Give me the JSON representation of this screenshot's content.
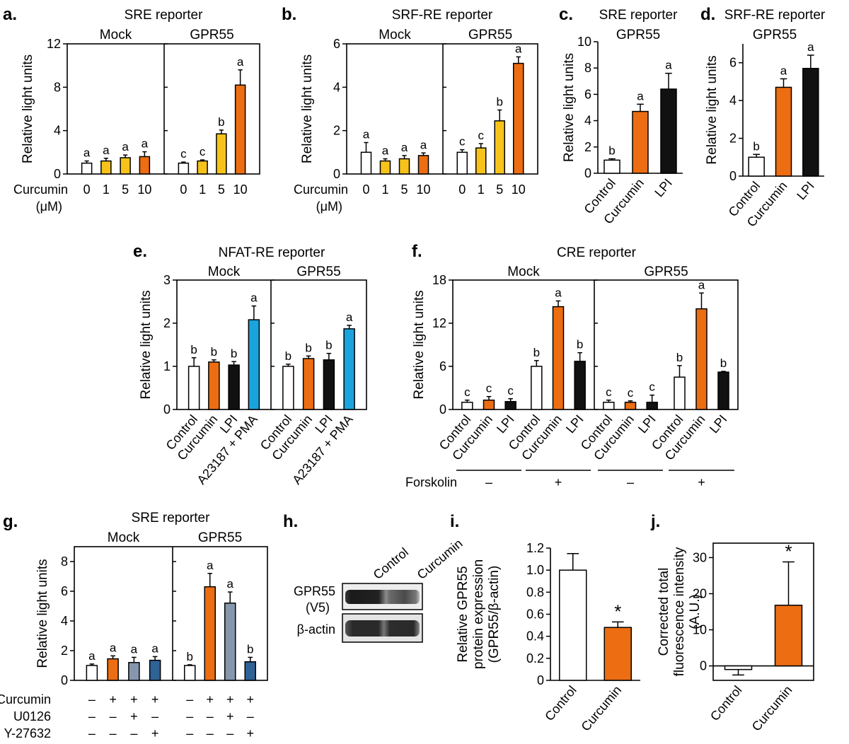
{
  "colors": {
    "white": "#ffffff",
    "yellow": "#f7c31b",
    "orange": "#ec6d12",
    "black": "#111111",
    "cyan": "#1ba3dd",
    "slate": "#8696ad",
    "blue": "#2f6295"
  },
  "chart_data": [
    {
      "id": "a",
      "panel_label": "a.",
      "type": "bar",
      "title": "SRE reporter",
      "ylabel": "Relative light units",
      "ylim": [
        0,
        12
      ],
      "yticks": [
        0,
        4,
        8,
        12
      ],
      "groups": [
        "Mock",
        "GPR55"
      ],
      "categories": [
        "0",
        "1",
        "5",
        "10"
      ],
      "category_axis_label": "Curcumin",
      "category_axis_unit": "(μM)",
      "series": [
        {
          "group": "Mock",
          "values": [
            1.0,
            1.2,
            1.5,
            1.6
          ],
          "errors": [
            0.2,
            0.25,
            0.25,
            0.45
          ],
          "letters": [
            "a",
            "a",
            "a",
            "a"
          ],
          "colors": [
            "white",
            "yellow",
            "yellow",
            "orange"
          ]
        },
        {
          "group": "GPR55",
          "values": [
            1.0,
            1.2,
            3.7,
            8.2
          ],
          "errors": [
            0.1,
            0.1,
            0.35,
            1.4
          ],
          "letters": [
            "c",
            "c",
            "b",
            "a"
          ],
          "colors": [
            "white",
            "yellow",
            "yellow",
            "orange"
          ]
        }
      ]
    },
    {
      "id": "b",
      "panel_label": "b.",
      "type": "bar",
      "title": "SRF-RE reporter",
      "ylabel": "Relative light units",
      "ylim": [
        0,
        6
      ],
      "yticks": [
        0,
        2,
        4,
        6
      ],
      "groups": [
        "Mock",
        "GPR55"
      ],
      "categories": [
        "0",
        "1",
        "5",
        "10"
      ],
      "category_axis_label": "Curcumin",
      "category_axis_unit": "(μM)",
      "series": [
        {
          "group": "Mock",
          "values": [
            1.0,
            0.6,
            0.7,
            0.85
          ],
          "errors": [
            0.45,
            0.1,
            0.15,
            0.12
          ],
          "letters": [
            "a",
            "a",
            "a",
            "a"
          ],
          "colors": [
            "white",
            "yellow",
            "yellow",
            "orange"
          ]
        },
        {
          "group": "GPR55",
          "values": [
            1.0,
            1.2,
            2.45,
            5.1
          ],
          "errors": [
            0.12,
            0.2,
            0.5,
            0.3
          ],
          "letters": [
            "c",
            "c",
            "b",
            "a"
          ],
          "colors": [
            "white",
            "yellow",
            "yellow",
            "orange"
          ]
        }
      ]
    },
    {
      "id": "c",
      "panel_label": "c.",
      "type": "bar",
      "title": "SRE reporter",
      "subtitle": "GPR55",
      "ylabel": "Relative light units",
      "ylim": [
        0,
        10
      ],
      "yticks": [
        0,
        2,
        4,
        6,
        8,
        10
      ],
      "categories": [
        "Control",
        "Curcumin",
        "LPI"
      ],
      "values": [
        1.0,
        4.7,
        6.4
      ],
      "errors": [
        0.1,
        0.55,
        1.2
      ],
      "letters": [
        "b",
        "a",
        "a"
      ],
      "colors": [
        "white",
        "orange",
        "black"
      ]
    },
    {
      "id": "d",
      "panel_label": "d.",
      "type": "bar",
      "title": "SRF-RE reporter",
      "subtitle": "GPR55",
      "ylabel": "Relative light units",
      "ylim": [
        0,
        7
      ],
      "yticks": [
        0,
        2,
        4,
        6
      ],
      "categories": [
        "Control",
        "Curcumin",
        "LPI"
      ],
      "values": [
        1.0,
        4.7,
        5.7
      ],
      "errors": [
        0.15,
        0.45,
        0.7
      ],
      "letters": [
        "b",
        "a",
        "a"
      ],
      "colors": [
        "white",
        "orange",
        "black"
      ]
    },
    {
      "id": "e",
      "panel_label": "e.",
      "type": "bar",
      "title": "NFAT-RE reporter",
      "ylabel": "Relative light units",
      "ylim": [
        0,
        3
      ],
      "yticks": [
        0,
        1,
        2,
        3
      ],
      "groups": [
        "Mock",
        "GPR55"
      ],
      "categories": [
        "Control",
        "Curcumin",
        "LPI",
        "A23187 + PMA"
      ],
      "series": [
        {
          "group": "Mock",
          "values": [
            1.0,
            1.1,
            1.03,
            2.08
          ],
          "errors": [
            0.2,
            0.05,
            0.08,
            0.32
          ],
          "letters": [
            "b",
            "b",
            "b",
            "a"
          ],
          "colors": [
            "white",
            "orange",
            "black",
            "cyan"
          ]
        },
        {
          "group": "GPR55",
          "values": [
            1.0,
            1.18,
            1.15,
            1.87
          ],
          "errors": [
            0.05,
            0.06,
            0.15,
            0.08
          ],
          "letters": [
            "b",
            "b",
            "b",
            "a"
          ],
          "colors": [
            "white",
            "orange",
            "black",
            "cyan"
          ]
        }
      ]
    },
    {
      "id": "f",
      "panel_label": "f.",
      "type": "bar",
      "title": "CRE reporter",
      "ylabel": "Relative light units",
      "ylim": [
        0,
        18
      ],
      "yticks": [
        0,
        6,
        12,
        18
      ],
      "groups": [
        "Mock",
        "GPR55"
      ],
      "categories": [
        "Control",
        "Curcumin",
        "LPI"
      ],
      "treatment_label": "Forskolin",
      "treatment_signs": [
        "–",
        "+",
        "–",
        "+"
      ],
      "series": [
        {
          "group": "Mock",
          "forskolin": "–",
          "values": [
            1.0,
            1.3,
            1.1
          ],
          "errors": [
            0.3,
            0.5,
            0.4
          ],
          "letters": [
            "c",
            "c",
            "c"
          ],
          "colors": [
            "white",
            "orange",
            "black"
          ]
        },
        {
          "group": "Mock",
          "forskolin": "+",
          "values": [
            6.0,
            14.3,
            6.7
          ],
          "errors": [
            0.8,
            0.8,
            1.2
          ],
          "letters": [
            "b",
            "a",
            "b"
          ],
          "colors": [
            "white",
            "orange",
            "black"
          ]
        },
        {
          "group": "GPR55",
          "forskolin": "–",
          "values": [
            1.0,
            1.0,
            1.0
          ],
          "errors": [
            0.3,
            0.2,
            1.0
          ],
          "letters": [
            "c",
            "c",
            "c"
          ],
          "colors": [
            "white",
            "orange",
            "black"
          ]
        },
        {
          "group": "GPR55",
          "forskolin": "+",
          "values": [
            4.5,
            14.0,
            5.2
          ],
          "errors": [
            1.6,
            2.2,
            0.1
          ],
          "letters": [
            "b",
            "a",
            "b"
          ],
          "colors": [
            "white",
            "orange",
            "black"
          ]
        }
      ]
    },
    {
      "id": "g",
      "panel_label": "g.",
      "type": "bar",
      "title": "SRE reporter",
      "ylabel": "Relative light units",
      "ylim": [
        0,
        9
      ],
      "yticks": [
        0,
        2,
        4,
        6,
        8
      ],
      "groups": [
        "Mock",
        "GPR55"
      ],
      "treatment_rows": [
        {
          "label": "Curcumin",
          "signs": [
            "–",
            "+",
            "+",
            "+",
            "–",
            "+",
            "+",
            "+"
          ]
        },
        {
          "label": "U0126",
          "signs": [
            "–",
            "–",
            "+",
            "–",
            "–",
            "–",
            "+",
            "–"
          ]
        },
        {
          "label": "Y-27632",
          "signs": [
            "–",
            "–",
            "–",
            "+",
            "–",
            "–",
            "–",
            "+"
          ]
        }
      ],
      "series": [
        {
          "group": "Mock",
          "values": [
            1.0,
            1.45,
            1.2,
            1.35
          ],
          "errors": [
            0.1,
            0.2,
            0.35,
            0.25
          ],
          "letters": [
            "a",
            "a",
            "a",
            "a"
          ],
          "colors": [
            "white",
            "orange",
            "slate",
            "blue"
          ]
        },
        {
          "group": "GPR55",
          "values": [
            1.0,
            6.3,
            5.2,
            1.25
          ],
          "errors": [
            0.05,
            0.9,
            0.75,
            0.3
          ],
          "letters": [
            "b",
            "a",
            "a",
            "b"
          ],
          "colors": [
            "white",
            "orange",
            "slate",
            "blue"
          ]
        }
      ]
    },
    {
      "id": "h",
      "panel_label": "h.",
      "type": "image",
      "lane_labels": [
        "Control",
        "Curcumin"
      ],
      "rows": [
        {
          "label_line1": "GPR55",
          "label_line2": "(V5)"
        },
        {
          "label_line1": "β-actin",
          "label_line2": ""
        }
      ]
    },
    {
      "id": "i",
      "panel_label": "i.",
      "type": "bar",
      "ylabel_lines": [
        "Relative GPR55",
        "protein expression",
        "(GPR55/β-actin)"
      ],
      "ylim": [
        0,
        1.2
      ],
      "yticks": [
        "0",
        "0.2",
        "0.4",
        "0.6",
        "0.8",
        "1.0",
        "1.2"
      ],
      "categories": [
        "Control",
        "Curcumin"
      ],
      "values": [
        1.0,
        0.48
      ],
      "errors": [
        0.15,
        0.05
      ],
      "significance": [
        "",
        "*"
      ],
      "colors": [
        "white",
        "orange"
      ]
    },
    {
      "id": "j",
      "panel_label": "j.",
      "type": "bar",
      "ylabel_lines": [
        "Corrected total",
        "fluorescence intensity",
        "(A.U.)"
      ],
      "ylim": [
        -4,
        34
      ],
      "yticks": [
        0,
        10,
        20,
        30
      ],
      "categories": [
        "Control",
        "Curcumin"
      ],
      "values": [
        -1.0,
        16.8
      ],
      "errors": [
        1.5,
        12.0
      ],
      "significance": [
        "",
        "*"
      ],
      "colors": [
        "white",
        "orange"
      ]
    }
  ]
}
